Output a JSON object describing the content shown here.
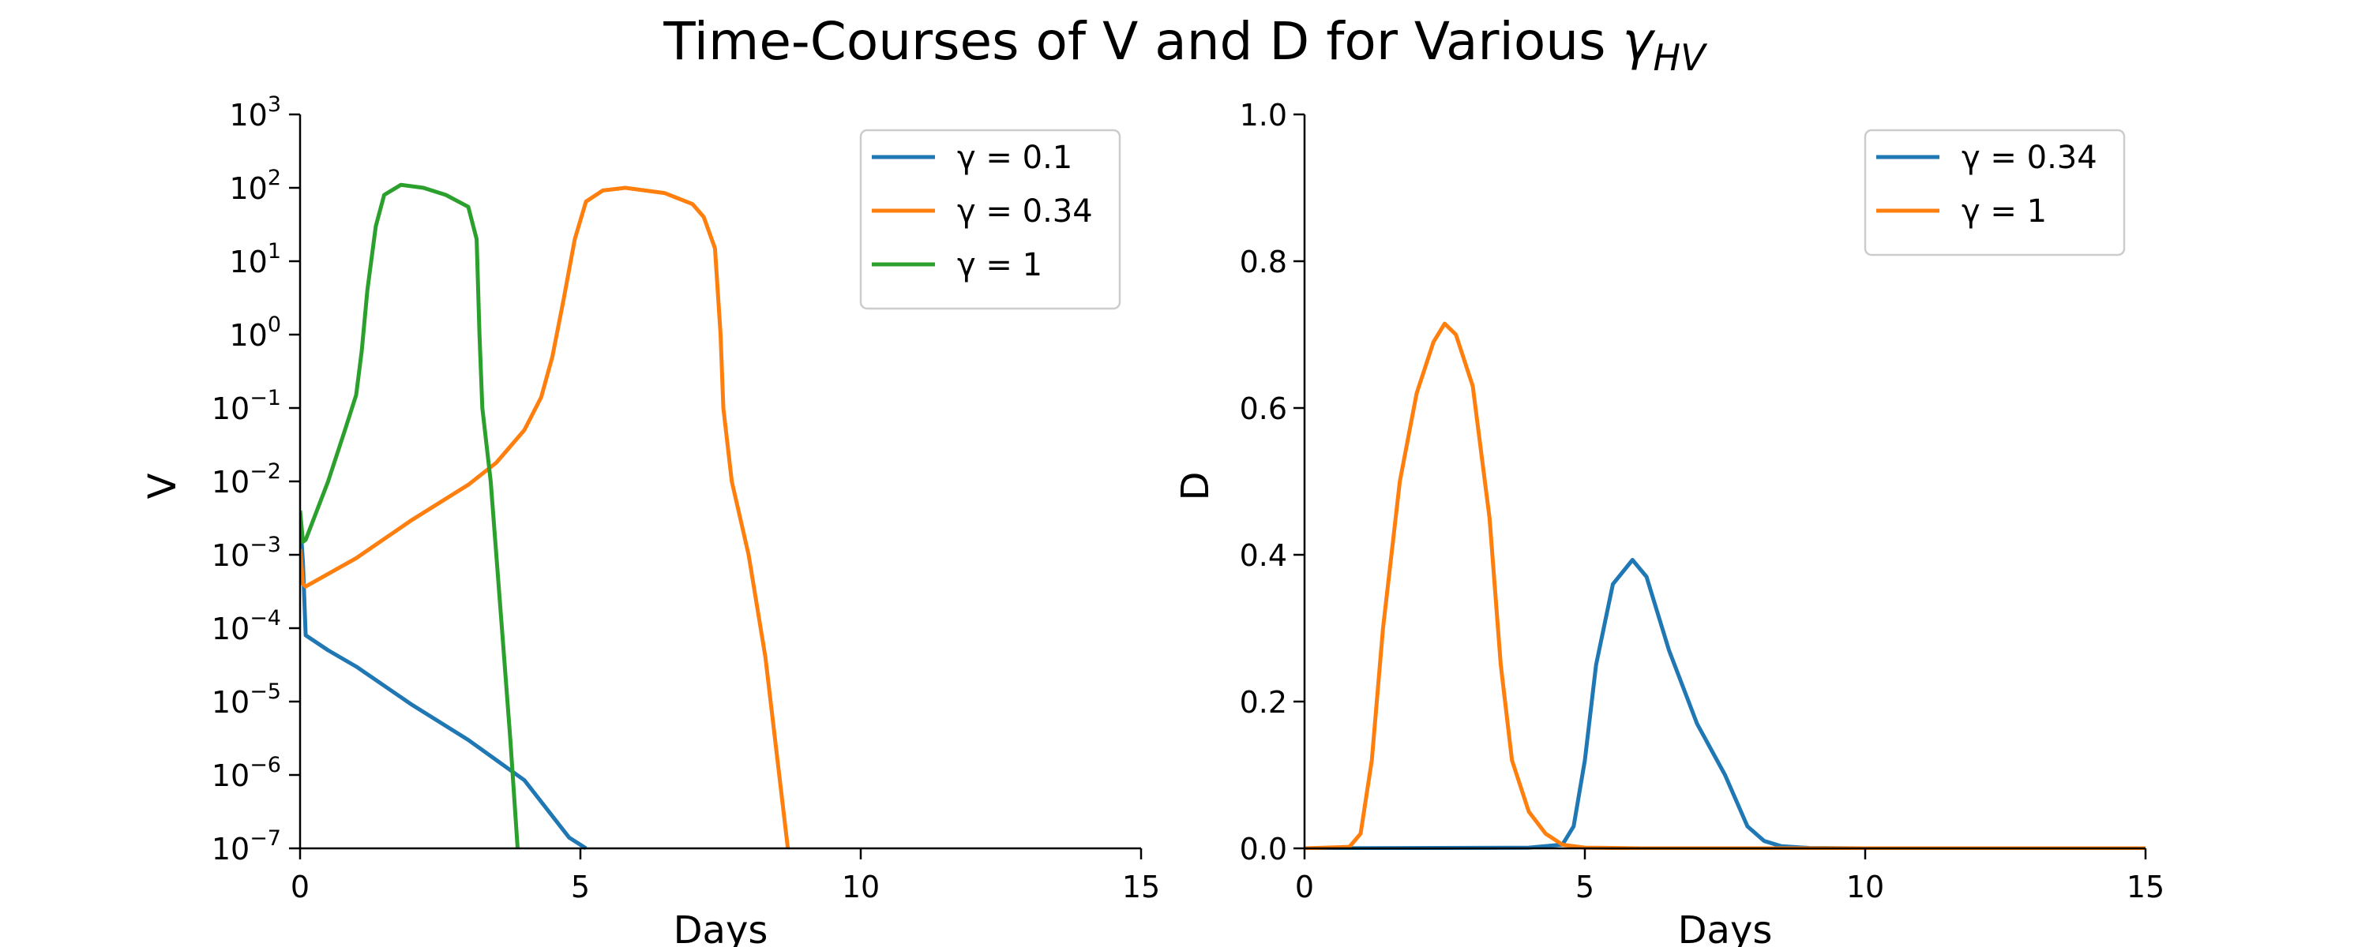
{
  "title": "Time-Courses of V and D for Various ",
  "title_symbol": "γ",
  "title_subscript": "HV",
  "colors": {
    "blue": "#1f77b4",
    "orange": "#ff7f0e",
    "green": "#2ca02c"
  },
  "chart_data": [
    {
      "type": "line",
      "xlabel": "Days",
      "ylabel": "V",
      "xlim": [
        0,
        15
      ],
      "ylim": [
        1e-07,
        1000
      ],
      "yscale": "log",
      "grid": false,
      "legend_position": "top-right",
      "x_ticks": [
        "0",
        "5",
        "10",
        "15"
      ],
      "y_ticks": [
        {
          "base": "10",
          "exp": "−7"
        },
        {
          "base": "10",
          "exp": "−6"
        },
        {
          "base": "10",
          "exp": "−5"
        },
        {
          "base": "10",
          "exp": "−4"
        },
        {
          "base": "10",
          "exp": "−3"
        },
        {
          "base": "10",
          "exp": "−2"
        },
        {
          "base": "10",
          "exp": "−1"
        },
        {
          "base": "10",
          "exp": "0"
        },
        {
          "base": "10",
          "exp": "1"
        },
        {
          "base": "10",
          "exp": "2"
        },
        {
          "base": "10",
          "exp": "3"
        }
      ],
      "series": [
        {
          "name": "γ = 0.1",
          "color": "#1f77b4",
          "points": [
            [
              0,
              0.003
            ],
            [
              0.05,
              0.0008
            ],
            [
              0.1,
              8e-05
            ],
            [
              0.5,
              5e-05
            ],
            [
              1,
              3e-05
            ],
            [
              2,
              9e-06
            ],
            [
              3,
              3e-06
            ],
            [
              4,
              8.5e-07
            ],
            [
              4.8,
              1.4e-07
            ],
            [
              5.1,
              1e-07
            ]
          ]
        },
        {
          "name": "γ = 0.34",
          "color": "#ff7f0e",
          "points": [
            [
              0,
              0.0012
            ],
            [
              0.05,
              0.0004
            ],
            [
              0.1,
              0.00037
            ],
            [
              1,
              0.0009
            ],
            [
              2,
              0.003
            ],
            [
              3,
              0.009
            ],
            [
              3.5,
              0.018
            ],
            [
              4,
              0.05
            ],
            [
              4.3,
              0.14
            ],
            [
              4.5,
              0.5
            ],
            [
              4.7,
              3
            ],
            [
              4.9,
              20
            ],
            [
              5.1,
              65
            ],
            [
              5.4,
              92
            ],
            [
              5.8,
              100
            ],
            [
              6.5,
              85
            ],
            [
              7,
              60
            ],
            [
              7.2,
              40
            ],
            [
              7.4,
              15
            ],
            [
              7.5,
              1
            ],
            [
              7.55,
              0.1
            ],
            [
              7.7,
              0.01
            ],
            [
              8,
              0.001
            ],
            [
              8.3,
              4e-05
            ],
            [
              8.7,
              1e-07
            ]
          ]
        },
        {
          "name": "γ = 1",
          "color": "#2ca02c",
          "points": [
            [
              0,
              0.004
            ],
            [
              0.05,
              0.0015
            ],
            [
              0.1,
              0.0016
            ],
            [
              0.5,
              0.01
            ],
            [
              0.8,
              0.05
            ],
            [
              1.0,
              0.15
            ],
            [
              1.1,
              0.6
            ],
            [
              1.2,
              4
            ],
            [
              1.35,
              30
            ],
            [
              1.5,
              80
            ],
            [
              1.8,
              110
            ],
            [
              2.2,
              100
            ],
            [
              2.6,
              80
            ],
            [
              3.0,
              55
            ],
            [
              3.15,
              20
            ],
            [
              3.2,
              1
            ],
            [
              3.25,
              0.1
            ],
            [
              3.4,
              0.01
            ],
            [
              3.6,
              0.0001
            ],
            [
              3.75,
              3e-06
            ],
            [
              3.88,
              1e-07
            ]
          ]
        }
      ]
    },
    {
      "type": "line",
      "xlabel": "Days",
      "ylabel": "D",
      "xlim": [
        0,
        15
      ],
      "ylim": [
        0,
        1
      ],
      "yscale": "linear",
      "grid": false,
      "legend_position": "top-right",
      "x_ticks": [
        "0",
        "5",
        "10",
        "15"
      ],
      "y_ticks": [
        "0.0",
        "0.2",
        "0.4",
        "0.6",
        "0.8",
        "1.0"
      ],
      "series": [
        {
          "name": "γ = 0.34",
          "color": "#1f77b4",
          "points": [
            [
              0,
              0
            ],
            [
              4,
              0.001
            ],
            [
              4.6,
              0.005
            ],
            [
              4.8,
              0.03
            ],
            [
              5,
              0.12
            ],
            [
              5.2,
              0.25
            ],
            [
              5.5,
              0.36
            ],
            [
              5.85,
              0.393
            ],
            [
              6.1,
              0.37
            ],
            [
              6.5,
              0.27
            ],
            [
              7,
              0.17
            ],
            [
              7.5,
              0.1
            ],
            [
              7.9,
              0.03
            ],
            [
              8.2,
              0.01
            ],
            [
              8.5,
              0.003
            ],
            [
              9,
              0.0005
            ],
            [
              10,
              0
            ],
            [
              15,
              0
            ]
          ]
        },
        {
          "name": "γ = 1",
          "color": "#ff7f0e",
          "points": [
            [
              0,
              0
            ],
            [
              0.8,
              0.002
            ],
            [
              1.0,
              0.02
            ],
            [
              1.2,
              0.12
            ],
            [
              1.4,
              0.3
            ],
            [
              1.7,
              0.5
            ],
            [
              2,
              0.62
            ],
            [
              2.3,
              0.69
            ],
            [
              2.5,
              0.715
            ],
            [
              2.7,
              0.7
            ],
            [
              3,
              0.63
            ],
            [
              3.3,
              0.45
            ],
            [
              3.5,
              0.25
            ],
            [
              3.7,
              0.12
            ],
            [
              4,
              0.05
            ],
            [
              4.3,
              0.02
            ],
            [
              4.6,
              0.005
            ],
            [
              5,
              0.001
            ],
            [
              6,
              0
            ],
            [
              15,
              0
            ]
          ]
        }
      ]
    }
  ]
}
